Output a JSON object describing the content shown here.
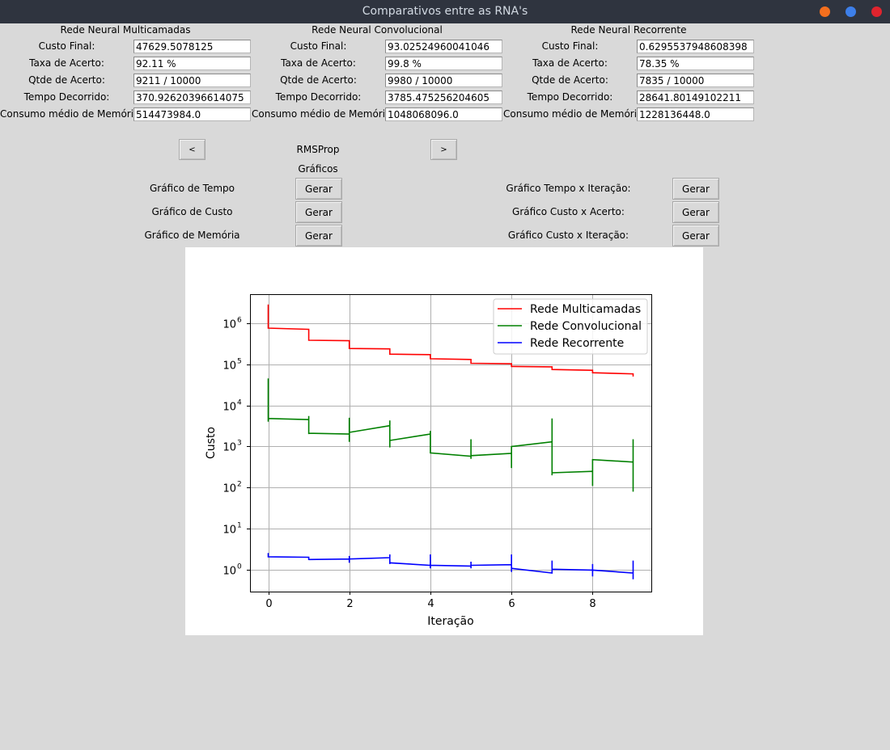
{
  "window": {
    "title": "Comparativos entre as RNA's",
    "buttons": {
      "minimize_color": "#f46f1e",
      "maximize_color": "#3d7fe9",
      "close_color": "#e0242e"
    }
  },
  "columns": [
    {
      "title": "Rede Neural Multicamadas",
      "rows": [
        {
          "label": "Custo Final:",
          "value": "47629.5078125"
        },
        {
          "label": "Taxa de Acerto:",
          "value": "92.11 %"
        },
        {
          "label": "Qtde de Acerto:",
          "value": "9211 / 10000"
        },
        {
          "label": "Tempo Decorrido:",
          "value": "370.92620396614075"
        },
        {
          "label": "Consumo médio de Memória",
          "value": "514473984.0"
        }
      ]
    },
    {
      "title": "Rede Neural Convolucional",
      "rows": [
        {
          "label": "Custo Final:",
          "value": "93.02524960041046"
        },
        {
          "label": "Taxa de Acerto:",
          "value": "99.8 %"
        },
        {
          "label": "Qtde de Acerto:",
          "value": "9980 / 10000"
        },
        {
          "label": "Tempo Decorrido:",
          "value": "3785.475256204605"
        },
        {
          "label": "Consumo médio de Memória",
          "value": "1048068096.0"
        }
      ]
    },
    {
      "title": "Rede Neural Recorrente",
      "rows": [
        {
          "label": "Custo Final:",
          "value": "0.6295537948608398"
        },
        {
          "label": "Taxa de Acerto:",
          "value": "78.35 %"
        },
        {
          "label": "Qtde de Acerto:",
          "value": "7835 / 10000"
        },
        {
          "label": "Tempo Decorrido:",
          "value": "28641.80149102211"
        },
        {
          "label": "Consumo médio de Memória",
          "value": "1228136448.0"
        }
      ]
    }
  ],
  "nav": {
    "prev_label": "<",
    "next_label": ">",
    "optimizer": "RMSProp"
  },
  "graphs": {
    "section_title": "Gráficos",
    "gen_label": "Gerar",
    "left": [
      "Gráfico de Tempo",
      "Gráfico de Custo",
      "Gráfico de Memória"
    ],
    "right": [
      "Gráfico Tempo x Iteração:",
      "Gráfico Custo x Acerto:",
      "Gráfico Custo x Iteração:"
    ]
  },
  "chart_data": {
    "type": "line",
    "xlabel": "Iteração",
    "ylabel": "Custo",
    "yscale": "log",
    "xlim": [
      -0.45,
      9.45
    ],
    "ylim": [
      0.3,
      5000000
    ],
    "xticks": [
      0,
      2,
      4,
      6,
      8
    ],
    "yticks": [
      1,
      10,
      100,
      1000,
      10000,
      100000,
      1000000
    ],
    "ytick_labels": [
      "10",
      "10",
      "10",
      "10",
      "10",
      "10",
      "10"
    ],
    "ytick_exponents": [
      "0",
      "1",
      "2",
      "3",
      "4",
      "5",
      "6"
    ],
    "grid": true,
    "legend": "top-right",
    "series": [
      {
        "name": "Rede Multicamadas",
        "color": "#ff0000",
        "x": [
          0,
          0,
          0,
          1,
          1,
          2,
          2,
          3,
          3,
          4,
          4,
          5,
          5,
          6,
          6,
          7,
          7,
          8,
          8,
          9,
          9
        ],
        "y": [
          2800000,
          750000,
          750000,
          700000,
          380000,
          370000,
          240000,
          235000,
          175000,
          170000,
          135000,
          130000,
          105000,
          102000,
          88000,
          86000,
          74000,
          71000,
          62000,
          58000,
          50000
        ]
      },
      {
        "name": "Rede Convolucional",
        "color": "#008000",
        "x": [
          0,
          0,
          0,
          1,
          1,
          1,
          1,
          2,
          2,
          2,
          2,
          3,
          3,
          3,
          3,
          4,
          4,
          4,
          4,
          5,
          5,
          5,
          5,
          6,
          6,
          6,
          6,
          7,
          7,
          7,
          7,
          8,
          8,
          8,
          8,
          9,
          9,
          9,
          9
        ],
        "y": [
          45000,
          4000,
          4800,
          4500,
          5500,
          2000,
          2100,
          2000,
          5000,
          1300,
          2200,
          3200,
          4300,
          950,
          1400,
          2000,
          2400,
          1000,
          700,
          580,
          1500,
          500,
          600,
          680,
          300,
          1000,
          1000,
          1300,
          4800,
          200,
          230,
          250,
          110,
          480,
          480,
          420,
          80,
          1500,
          95
        ]
      },
      {
        "name": "Rede Recorrente",
        "color": "#0000ff",
        "x": [
          0,
          0,
          0,
          1,
          1,
          1,
          2,
          2,
          2,
          2,
          3,
          3,
          3,
          3,
          4,
          4,
          4,
          4,
          5,
          5,
          5,
          5,
          6,
          6,
          6,
          6,
          7,
          7,
          7,
          7,
          8,
          8,
          8,
          8,
          9,
          9,
          9
        ],
        "y": [
          2.6,
          2.1,
          2.1,
          2.05,
          1.75,
          1.8,
          1.85,
          1.5,
          2.2,
          1.85,
          2.0,
          2.4,
          1.4,
          1.5,
          1.3,
          2.4,
          1.1,
          1.3,
          1.25,
          1.6,
          1.1,
          1.3,
          1.35,
          2.4,
          0.9,
          1.1,
          0.85,
          1.7,
          0.9,
          1.05,
          1.0,
          1.4,
          0.7,
          1.0,
          0.85,
          1.7,
          0.6
        ]
      }
    ]
  }
}
